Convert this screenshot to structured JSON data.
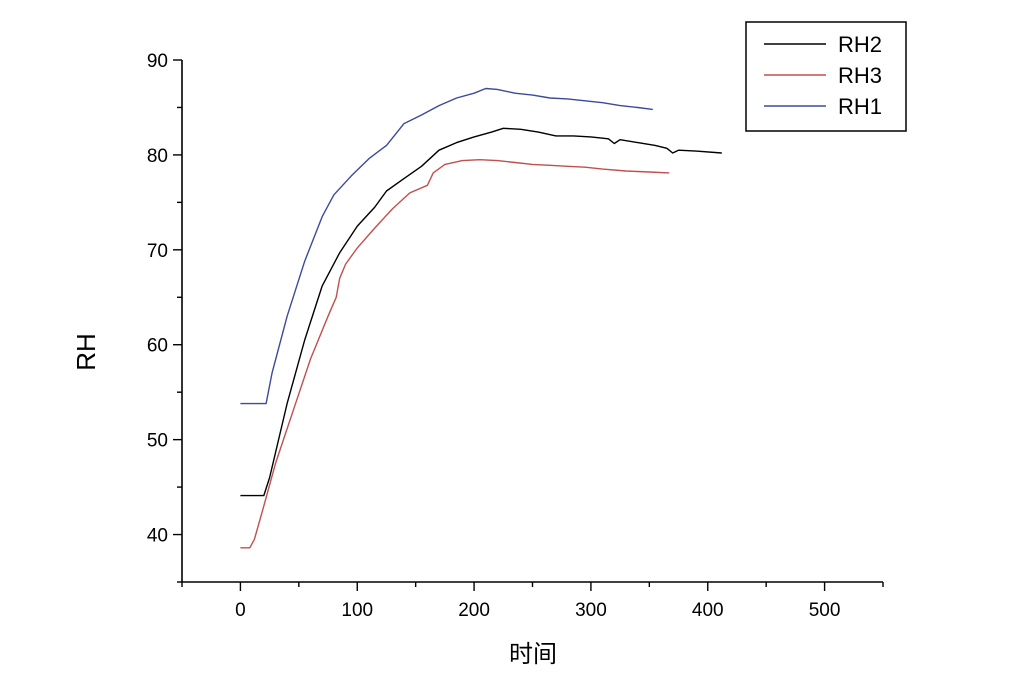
{
  "chart_data": {
    "type": "line",
    "xlabel": "时间",
    "ylabel": "RH",
    "xlim": [
      -50,
      550
    ],
    "ylim": [
      35,
      90
    ],
    "x_ticks": [
      0,
      100,
      200,
      300,
      400,
      500
    ],
    "y_ticks": [
      40,
      50,
      60,
      70,
      80,
      90
    ],
    "legend_position": "top-right",
    "series": [
      {
        "name": "RH2",
        "color": "#000000",
        "points": [
          [
            0,
            44.1
          ],
          [
            20,
            44.1
          ],
          [
            25,
            46
          ],
          [
            40,
            53.8
          ],
          [
            55,
            60.5
          ],
          [
            70,
            66.2
          ],
          [
            85,
            69.7
          ],
          [
            100,
            72.5
          ],
          [
            115,
            74.5
          ],
          [
            125,
            76.2
          ],
          [
            140,
            77.5
          ],
          [
            155,
            78.8
          ],
          [
            170,
            80.5
          ],
          [
            185,
            81.3
          ],
          [
            200,
            81.9
          ],
          [
            215,
            82.4
          ],
          [
            225,
            82.8
          ],
          [
            240,
            82.7
          ],
          [
            255,
            82.4
          ],
          [
            270,
            82.0
          ],
          [
            285,
            82.0
          ],
          [
            300,
            81.9
          ],
          [
            315,
            81.7
          ],
          [
            320,
            81.2
          ],
          [
            325,
            81.6
          ],
          [
            340,
            81.3
          ],
          [
            355,
            81.0
          ],
          [
            365,
            80.7
          ],
          [
            370,
            80.2
          ],
          [
            375,
            80.5
          ],
          [
            390,
            80.4
          ],
          [
            412,
            80.2
          ]
        ]
      },
      {
        "name": "RH3",
        "color": "#c0504d",
        "points": [
          [
            0,
            38.6
          ],
          [
            8,
            38.6
          ],
          [
            12,
            39.5
          ],
          [
            20,
            43
          ],
          [
            30,
            47.5
          ],
          [
            45,
            53
          ],
          [
            60,
            58.5
          ],
          [
            75,
            63
          ],
          [
            82,
            65
          ],
          [
            85,
            67
          ],
          [
            90,
            68.5
          ],
          [
            100,
            70.2
          ],
          [
            115,
            72.3
          ],
          [
            130,
            74.3
          ],
          [
            145,
            76
          ],
          [
            160,
            76.8
          ],
          [
            165,
            78.1
          ],
          [
            175,
            79
          ],
          [
            190,
            79.4
          ],
          [
            205,
            79.5
          ],
          [
            220,
            79.4
          ],
          [
            235,
            79.2
          ],
          [
            250,
            79.0
          ],
          [
            265,
            78.9
          ],
          [
            280,
            78.8
          ],
          [
            295,
            78.7
          ],
          [
            310,
            78.5
          ],
          [
            330,
            78.3
          ],
          [
            350,
            78.2
          ],
          [
            367,
            78.1
          ]
        ]
      },
      {
        "name": "RH1",
        "color": "#3c4a9a",
        "points": [
          [
            0,
            53.8
          ],
          [
            22,
            53.8
          ],
          [
            27,
            57
          ],
          [
            40,
            63
          ],
          [
            55,
            68.8
          ],
          [
            70,
            73.5
          ],
          [
            80,
            75.8
          ],
          [
            95,
            77.8
          ],
          [
            110,
            79.6
          ],
          [
            125,
            81.0
          ],
          [
            140,
            83.3
          ],
          [
            155,
            84.2
          ],
          [
            170,
            85.2
          ],
          [
            185,
            86.0
          ],
          [
            200,
            86.5
          ],
          [
            210,
            87.0
          ],
          [
            220,
            86.9
          ],
          [
            235,
            86.5
          ],
          [
            250,
            86.3
          ],
          [
            265,
            86.0
          ],
          [
            280,
            85.9
          ],
          [
            295,
            85.7
          ],
          [
            310,
            85.5
          ],
          [
            325,
            85.2
          ],
          [
            340,
            85.0
          ],
          [
            353,
            84.8
          ]
        ]
      }
    ]
  }
}
